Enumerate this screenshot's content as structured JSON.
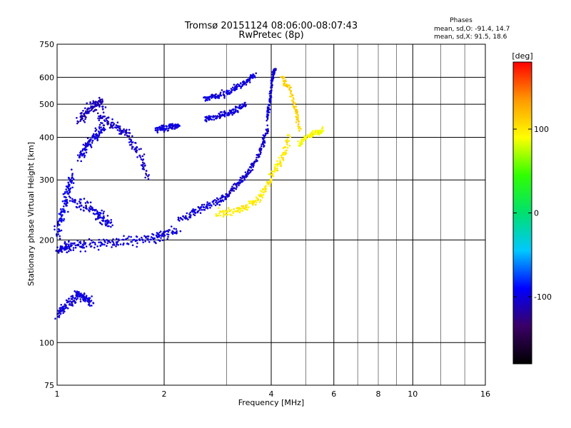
{
  "chart_data": {
    "type": "scatter",
    "title": "Tromsø 20151124 08:06:00-08:07:43",
    "subtitle": "RwPretec (8p)",
    "xlabel": "Frequency [MHz]",
    "ylabel": "Stationary phase Virtual Height [km]",
    "x_scale": "log",
    "y_scale": "log",
    "xlim": [
      1,
      16
    ],
    "ylim": [
      75,
      750
    ],
    "x_major_ticks": [
      1,
      2,
      4,
      6,
      10,
      16
    ],
    "x_minor_ticks": [
      3,
      5,
      7,
      8,
      9,
      12,
      14
    ],
    "x_tick_labels": [
      "1",
      "2",
      "4",
      "6",
      "8",
      "10",
      "16"
    ],
    "x_labeled_values": [
      1,
      2,
      4,
      6,
      8,
      10,
      16
    ],
    "y_ticks": [
      75,
      100,
      200,
      300,
      400,
      500,
      600,
      750
    ],
    "y_tick_labels": [
      "75",
      "100",
      "200",
      "300",
      "400",
      "500",
      "600",
      "750"
    ],
    "y_grid": [
      100,
      200,
      300,
      400,
      500,
      600
    ],
    "grid": true,
    "phases_header": "Phases",
    "stats_lines": [
      "mean, sd,O: -91.4, 14.7",
      "mean, sd,X:  91.5, 18.6"
    ],
    "colorbar": {
      "label": "[deg]",
      "range": [
        -180,
        180
      ],
      "tick_values": [
        100,
        0,
        -100
      ],
      "tick_labels": [
        "100",
        "0",
        "-100"
      ],
      "colors": [
        "#000000",
        "#3a0066",
        "#0000ff",
        "#00c8ff",
        "#00e070",
        "#30ff00",
        "#ffff00",
        "#ff9900",
        "#ff0000"
      ]
    },
    "series": [
      {
        "segments": [
          {
            "x": [
              1.0,
              1.05,
              1.1,
              1.2,
              1.35,
              1.5,
              1.7,
              1.9,
              2.0,
              2.2
            ],
            "y": [
              185,
              190,
              192,
              193,
              195,
              197,
              200,
              203,
              206,
              212
            ],
            "spread": 0.05,
            "phase": -100
          },
          {
            "x": [
              1.0,
              1.02,
              1.05,
              1.08,
              1.1
            ],
            "y": [
              205,
              230,
              255,
              285,
              310
            ],
            "spread": 0.06,
            "phase": -95
          },
          {
            "x": [
              1.1,
              1.2,
              1.3,
              1.35,
              1.4
            ],
            "y": [
              260,
              250,
              240,
              232,
              225
            ],
            "spread": 0.06,
            "phase": -100
          },
          {
            "x": [
              1.15,
              1.2,
              1.25,
              1.3,
              1.35
            ],
            "y": [
              350,
              370,
              390,
              410,
              430
            ],
            "spread": 0.05,
            "phase": -100
          },
          {
            "x": [
              1.15,
              1.2,
              1.25,
              1.3,
              1.35
            ],
            "y": [
              450,
              470,
              490,
              505,
              500
            ],
            "spread": 0.05,
            "phase": -110
          },
          {
            "x": [
              1.0,
              1.05,
              1.1,
              1.15,
              1.2,
              1.25
            ],
            "y": [
              120,
              128,
              133,
              138,
              135,
              130
            ],
            "spread": 0.05,
            "phase": -100
          },
          {
            "x": [
              1.3,
              1.4,
              1.5,
              1.6,
              1.7,
              1.8
            ],
            "y": [
              460,
              440,
              420,
              400,
              360,
              300
            ],
            "spread": 0.05,
            "phase": -105
          },
          {
            "x": [
              1.9,
              2.0,
              2.1,
              2.2
            ],
            "y": [
              420,
              425,
              430,
              435
            ],
            "spread": 0.03,
            "phase": -100
          },
          {
            "x": [
              2.2,
              2.4,
              2.6,
              2.8,
              3.0
            ],
            "y": [
              228,
              240,
              250,
              258,
              268
            ],
            "spread": 0.04,
            "phase": -100
          },
          {
            "x": [
              3.0,
              3.2,
              3.4,
              3.6,
              3.8,
              3.9
            ],
            "y": [
              270,
              290,
              310,
              340,
              380,
              430
            ],
            "spread": 0.03,
            "phase": -105
          },
          {
            "x": [
              2.6,
              2.8,
              3.0,
              3.2,
              3.4,
              3.6
            ],
            "y": [
              520,
              530,
              540,
              560,
              580,
              610
            ],
            "spread": 0.03,
            "phase": -100
          },
          {
            "x": [
              2.6,
              2.8,
              3.0,
              3.2,
              3.4
            ],
            "y": [
              450,
              460,
              470,
              480,
              500
            ],
            "spread": 0.03,
            "phase": -100
          },
          {
            "x": [
              3.9,
              3.95,
              4.0,
              4.05,
              4.1
            ],
            "y": [
              450,
              500,
              560,
              610,
              640
            ],
            "spread": 0.02,
            "phase": -100
          },
          {
            "x": [
              2.8,
              3.1,
              3.4,
              3.7,
              3.9,
              4.1,
              4.3,
              4.5
            ],
            "y": [
              238,
              242,
              250,
              265,
              290,
              320,
              350,
              400
            ],
            "spread": 0.04,
            "phase": 100
          },
          {
            "x": [
              4.3,
              4.5,
              4.7,
              4.8
            ],
            "y": [
              600,
              560,
              480,
              420
            ],
            "spread": 0.03,
            "phase": 110
          },
          {
            "x": [
              4.8,
              5.0,
              5.3,
              5.6
            ],
            "y": [
              380,
              400,
              410,
              420
            ],
            "spread": 0.03,
            "phase": 90
          }
        ]
      }
    ]
  }
}
